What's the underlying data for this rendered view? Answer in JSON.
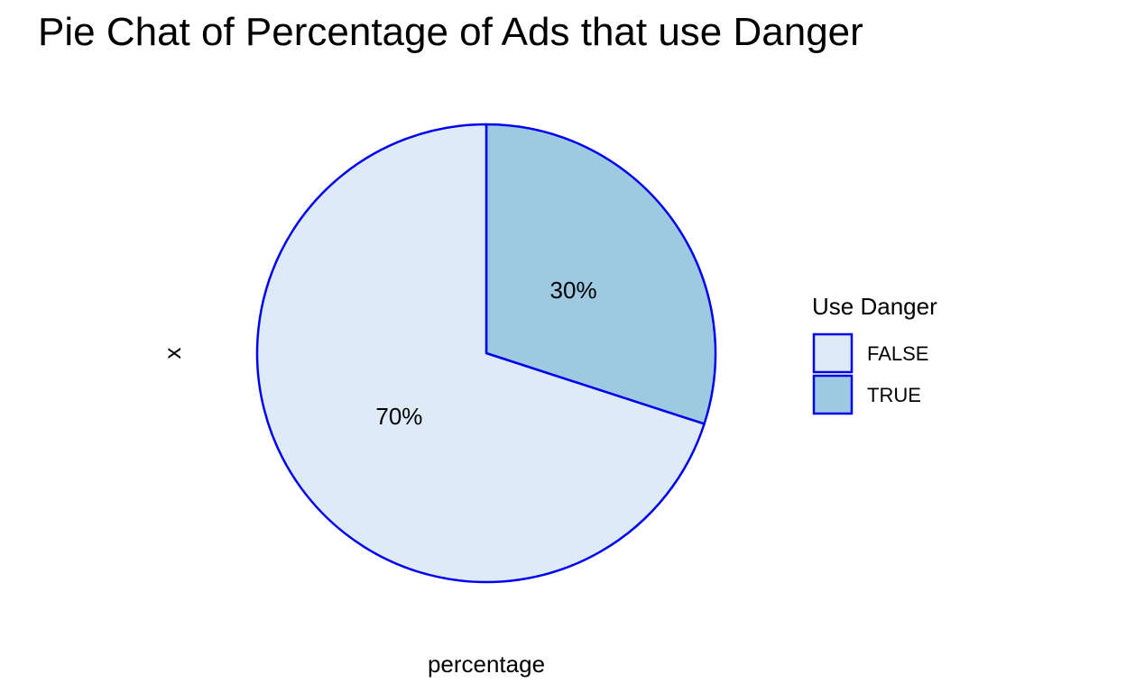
{
  "chart_data": {
    "type": "pie",
    "title": "Pie Chat of Percentage of Ads that use Danger",
    "xlabel": "percentage",
    "ylabel": "x",
    "categories": [
      "FALSE",
      "TRUE"
    ],
    "values": [
      70,
      30
    ],
    "slice_labels": [
      "70%",
      "30%"
    ],
    "start_angle_deg": 0,
    "direction": "clockwise",
    "legend": {
      "title": "Use Danger",
      "entries": [
        "FALSE",
        "TRUE"
      ],
      "placement": "right"
    },
    "colors": {
      "FALSE": "#DEEBF7",
      "TRUE": "#9ECAE1",
      "outline": "#0000EE"
    }
  }
}
